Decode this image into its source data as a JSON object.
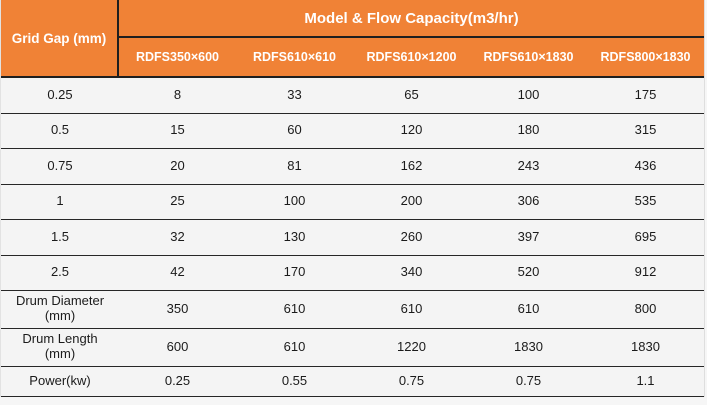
{
  "colors": {
    "header_bg": "#F08236",
    "header_text": "#FFFFFF",
    "row_bg": "#F4F4F4",
    "border_dark": "#1F1F1F",
    "body_text": "#1B1B1B"
  },
  "chart_data": {
    "type": "table",
    "title": "Model & Flow Capacity(m3/hr)",
    "corner_header": "Grid Gap (mm)",
    "columns": [
      "RDFS350×600",
      "RDFS610×610",
      "RDFS610×1200",
      "RDFS610×1830",
      "RDFS800×1830"
    ],
    "rows": [
      {
        "label": "0.25",
        "values": [
          8,
          33,
          65,
          100,
          175
        ]
      },
      {
        "label": "0.5",
        "values": [
          15,
          60,
          120,
          180,
          315
        ]
      },
      {
        "label": "0.75",
        "values": [
          20,
          81,
          162,
          243,
          436
        ]
      },
      {
        "label": "1",
        "values": [
          25,
          100,
          200,
          306,
          535
        ]
      },
      {
        "label": "1.5",
        "values": [
          32,
          130,
          260,
          397,
          695
        ]
      },
      {
        "label": "2.5",
        "values": [
          42,
          170,
          340,
          520,
          912
        ]
      },
      {
        "label": "Drum Diameter (mm)",
        "values": [
          350,
          610,
          610,
          610,
          800
        ]
      },
      {
        "label": "Drum Length (mm)",
        "values": [
          600,
          610,
          1220,
          1830,
          1830
        ]
      },
      {
        "label": "Power(kw)",
        "values": [
          0.25,
          0.55,
          0.75,
          0.75,
          1.1
        ]
      }
    ]
  }
}
